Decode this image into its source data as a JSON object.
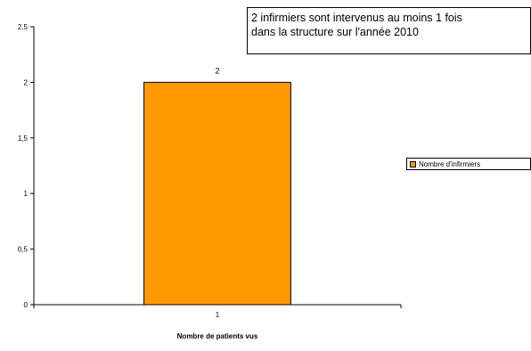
{
  "chart_data": {
    "type": "bar",
    "categories": [
      "1"
    ],
    "series": [
      {
        "name": "Nombre d'infirmiers",
        "values": [
          2
        ]
      }
    ],
    "data_labels": [
      "2"
    ],
    "xlabel": "Nombre de patients vus",
    "ylabel": "",
    "ylim": [
      0,
      2.5
    ],
    "yticks": [
      "0",
      "0,5",
      "1",
      "1,5",
      "2",
      "2,5"
    ],
    "annotation_lines": [
      "2 infirmiers sont intervenus au moins 1 fois",
      "dans la structure sur l'année 2010"
    ],
    "legend_position": "right",
    "grid": false,
    "bar_color": "#FF9900"
  }
}
